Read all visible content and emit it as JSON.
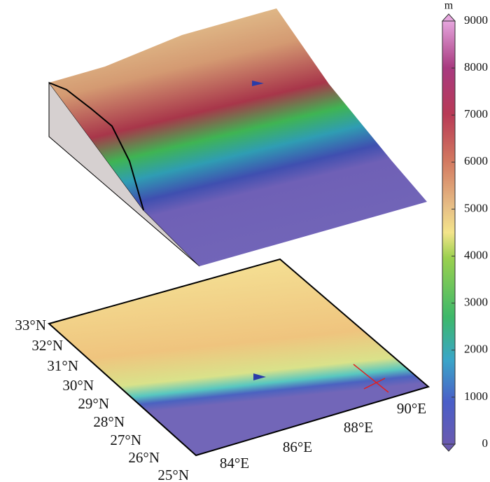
{
  "colorbar": {
    "unit": "m",
    "lim": [
      0,
      9000
    ],
    "ticks": [
      0,
      1000,
      2000,
      3000,
      4000,
      5000,
      6000,
      7000,
      8000,
      9000
    ]
  },
  "lat_labels": [
    "33°N",
    "32°N",
    "31°N",
    "30°N",
    "29°N",
    "28°N",
    "27°N",
    "26°N",
    "25°N"
  ],
  "lon_labels": [
    "84°E",
    "86°E",
    "88°E",
    "90°E"
  ]
}
